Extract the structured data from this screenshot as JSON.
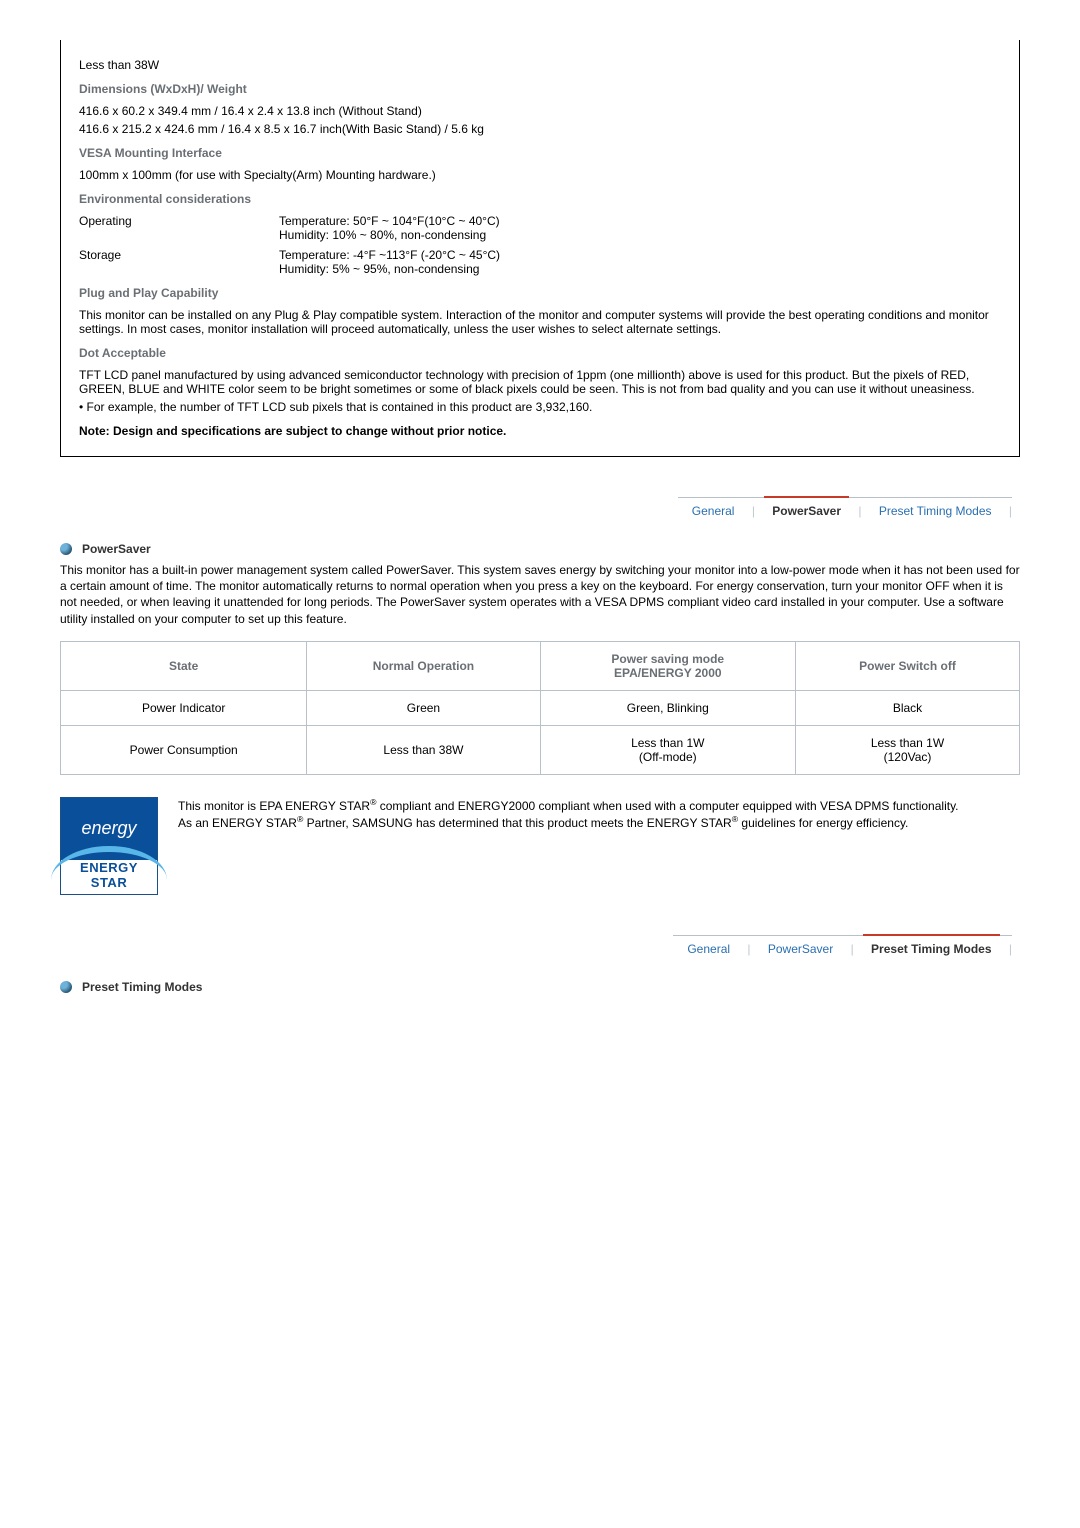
{
  "spec": {
    "power_value": "Less than 38W",
    "dimensions_heading": "Dimensions (WxDxH)/ Weight",
    "dimensions_line1": "416.6 x 60.2 x 349.4 mm / 16.4 x 2.4 x 13.8 inch (Without Stand)",
    "dimensions_line2": "416.6 x 215.2 x 424.6 mm / 16.4 x 8.5 x 16.7 inch(With Basic Stand) / 5.6 kg",
    "vesa_heading": "VESA Mounting Interface",
    "vesa_body": "100mm x 100mm (for use with Specialty(Arm) Mounting hardware.)",
    "env_heading": "Environmental considerations",
    "env_op_label": "Operating",
    "env_op_temp": "Temperature: 50°F ~ 104°F(10°C ~ 40°C)",
    "env_op_hum": "Humidity: 10% ~ 80%, non-condensing",
    "env_st_label": "Storage",
    "env_st_temp": "Temperature: -4°F ~113°F (-20°C ~ 45°C)",
    "env_st_hum": "Humidity: 5% ~ 95%, non-condensing",
    "pnp_heading": "Plug and Play Capability",
    "pnp_body": "This monitor can be installed on any Plug & Play compatible system. Interaction of the monitor and computer systems will provide the best operating conditions and monitor settings. In most cases, monitor installation will proceed automatically, unless the user wishes to select alternate settings.",
    "dot_heading": "Dot Acceptable",
    "dot_body": "TFT LCD panel manufactured by using advanced semiconductor technology with precision of 1ppm (one millionth) above is used for this product. But the pixels of RED, GREEN, BLUE and WHITE color seem to be bright sometimes or some of black pixels could be seen. This is not from bad quality and you can use it without uneasiness.",
    "dot_bullet": "For example, the number of TFT LCD sub pixels that is contained in this product are 3,932,160.",
    "note": "Note: Design and specifications are subject to change without prior notice."
  },
  "tabs": {
    "general": "General",
    "power": "PowerSaver",
    "preset": "Preset Timing Modes"
  },
  "powersaver": {
    "title": "PowerSaver",
    "para": "This monitor has a built-in power management system called PowerSaver. This system saves energy by switching your monitor into a low-power mode when it has not been used for a certain amount of time. The monitor automatically returns to normal operation when you press a key on the keyboard. For energy conservation, turn your monitor OFF when it is not needed, or when leaving it unattended for long periods. The PowerSaver system operates with a VESA DPMS compliant video card installed in your computer. Use a software utility installed on your computer to set up this feature.",
    "table": {
      "headers": {
        "state": "State",
        "normal": "Normal Operation",
        "saving_l1": "Power saving mode",
        "saving_l2": "EPA/ENERGY 2000",
        "off": "Power Switch off"
      },
      "rows": [
        {
          "state": "Power Indicator",
          "normal": "Green",
          "saving": "Green, Blinking",
          "off": "Black"
        },
        {
          "state": "Power Consumption",
          "normal": "Less than 38W",
          "saving_l1": "Less than 1W",
          "saving_l2": "(Off-mode)",
          "off_l1": "Less than 1W",
          "off_l2": "(120Vac)"
        }
      ]
    },
    "cert_line1a": "This monitor is EPA ENERGY STAR",
    "cert_line1b": " compliant and ENERGY2000 compliant when used with a computer equipped with VESA DPMS functionality.",
    "cert_line2a": "As an ENERGY STAR",
    "cert_line2b": " Partner, SAMSUNG has determined that this product meets the ENERGY STAR",
    "cert_line2c": " guidelines for energy efficiency.",
    "reg": "®",
    "logo_script": "energy",
    "logo_label": "ENERGY STAR"
  },
  "preset": {
    "title": "Preset Timing Modes"
  }
}
